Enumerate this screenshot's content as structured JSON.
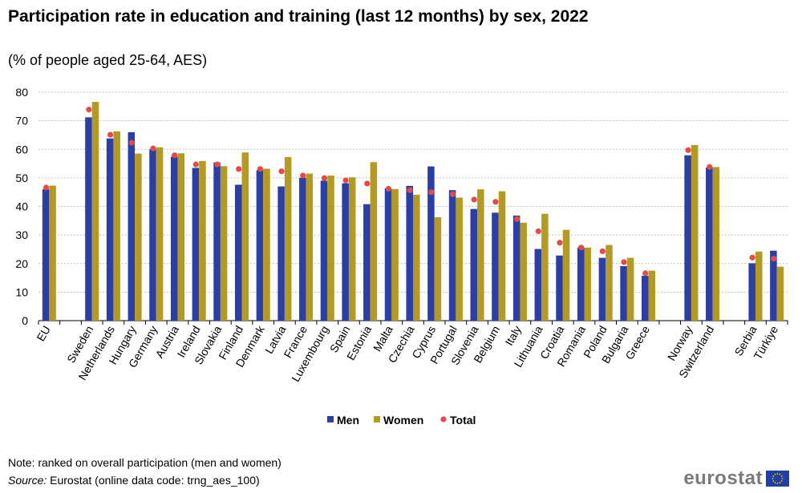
{
  "header": {
    "title": "Participation rate in education and training (last 12 months) by sex, 2022",
    "subtitle": "(% of people aged 25-64, AES)"
  },
  "footer": {
    "note": "Note: ranked on overall participation (men and women)",
    "source_label": "Source:",
    "source_text": " Eurostat (online data code: trng_aes_100)",
    "logo_text": "eurostat"
  },
  "colors": {
    "men": "#2b3ea6",
    "women": "#b39a24",
    "total": "#e34a4a",
    "grid": "#b0b0b0"
  },
  "chart_data": {
    "type": "bar",
    "title": "Participation rate in education and training (last 12 months) by sex, 2022",
    "subtitle": "(% of people aged 25-64, AES)",
    "ylim": [
      0,
      80
    ],
    "yticks": [
      0,
      10,
      20,
      30,
      40,
      50,
      60,
      70,
      80
    ],
    "grid": true,
    "legend_position": "bottom",
    "categories": [
      "EU",
      "",
      "Sweden",
      "Netherlands",
      "Hungary",
      "Germany",
      "Austria",
      "Ireland",
      "Slovakia",
      "Finland",
      "Denmark",
      "Latvia",
      "France",
      "Luxembourg",
      "Spain",
      "Estonia",
      "Malta",
      "Czechia",
      "Cyprus",
      "Portugal",
      "Slovenia",
      "Belgium",
      "Italy",
      "Lithuania",
      "Croatia",
      "Romania",
      "Poland",
      "Bulgaria",
      "Greece",
      "",
      "Norway",
      "Switzerland",
      "",
      "Serbia",
      "Türkiye"
    ],
    "series": [
      {
        "name": "Men",
        "type": "bar",
        "values": [
          46,
          null,
          71.2,
          63.8,
          66,
          60,
          57.4,
          53.5,
          55.4,
          47.6,
          52.7,
          47,
          50,
          49,
          48.1,
          40.8,
          46.4,
          47.2,
          54,
          45.7,
          39.1,
          37.8,
          36.8,
          25.1,
          22.8,
          25.6,
          22,
          19.1,
          15.7,
          null,
          57.9,
          53.6,
          null,
          20.1,
          24.5
        ]
      },
      {
        "name": "Women",
        "type": "bar",
        "values": [
          47.3,
          null,
          76.6,
          66.3,
          58.5,
          60.7,
          58.6,
          55.9,
          54.1,
          58.9,
          53.2,
          57.3,
          51.5,
          50.8,
          50.2,
          55.5,
          46.1,
          44.1,
          36.2,
          43.1,
          46,
          45.3,
          34.3,
          37.4,
          31.8,
          25.6,
          26.5,
          22,
          17.5,
          null,
          61.5,
          53.8,
          null,
          24.2,
          18.9
        ]
      },
      {
        "name": "Total",
        "type": "scatter",
        "values": [
          46.6,
          null,
          73.9,
          65.1,
          62.3,
          60.3,
          57.9,
          54.7,
          54.7,
          53.1,
          53.1,
          52.3,
          50.8,
          49.9,
          49.1,
          48,
          46.2,
          45.7,
          45,
          44.3,
          42.4,
          41.6,
          35.6,
          31.3,
          27.3,
          25.6,
          24.3,
          20.5,
          16.6,
          null,
          59.7,
          53.8,
          null,
          22.1,
          21.7
        ]
      }
    ]
  }
}
